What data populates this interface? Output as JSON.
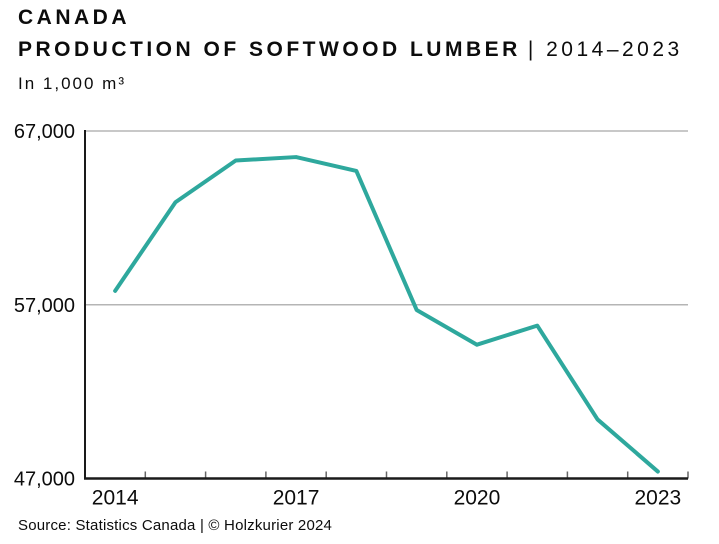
{
  "chart_data": {
    "type": "line",
    "title": "CANADA",
    "subtitle_bold": "PRODUCTION OF SOFTWOOD LUMBER",
    "subtitle_period": "| 2014–2023",
    "unit_label": "In 1,000 m³",
    "categories": [
      2014,
      2015,
      2016,
      2017,
      2018,
      2019,
      2020,
      2021,
      2022,
      2023
    ],
    "values": [
      57800,
      62900,
      65300,
      65500,
      64700,
      56700,
      54700,
      55800,
      50400,
      47400
    ],
    "ylim": [
      47000,
      67000
    ],
    "yticks": [
      {
        "value": 67000,
        "label": "67,000"
      },
      {
        "value": 57000,
        "label": "57,000"
      },
      {
        "value": 47000,
        "label": "47,000"
      }
    ],
    "xticks": [
      {
        "value": 2014,
        "label": "2014"
      },
      {
        "value": 2017,
        "label": "2017"
      },
      {
        "value": 2020,
        "label": "2020"
      },
      {
        "value": 2023,
        "label": "2023"
      }
    ],
    "grid": "horizontal",
    "legend": "none",
    "source": "Source: Statistics Canada | © Holzkurier 2024"
  },
  "colors": {
    "line": "#2ea89d",
    "grid": "#b5b5b5",
    "tick": "#666666",
    "axis": "#1a1a1a",
    "text": "#0c0c0c"
  }
}
